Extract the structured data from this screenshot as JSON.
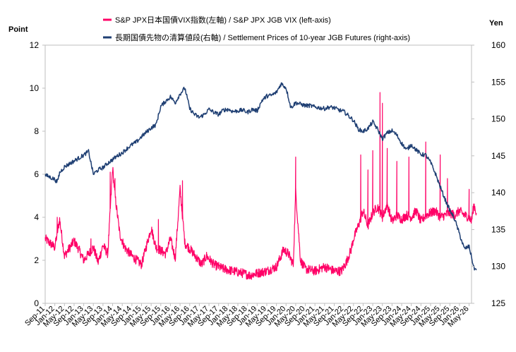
{
  "chart_data": {
    "type": "line",
    "title": "",
    "y_left": {
      "title": "Point",
      "min": 0,
      "max": 12,
      "ticks": [
        0,
        2,
        4,
        6,
        8,
        10,
        12
      ]
    },
    "y_right": {
      "title": "Yen",
      "min": 125,
      "max": 160,
      "ticks": [
        125,
        130,
        135,
        140,
        145,
        150,
        155,
        160
      ]
    },
    "x_axis": {
      "start_month_index": 8,
      "start_year": 2011,
      "end_month_index": 5,
      "end_year": 2026,
      "labels": [
        "Sep-11",
        "Jan-12",
        "May-12",
        "Sep-12",
        "Jan-13",
        "May-13",
        "Sep-13",
        "Jan-14",
        "May-14",
        "Sep-14",
        "Jan-15",
        "May-15",
        "Sep-15",
        "Jan-16",
        "May-16",
        "Sep-16",
        "Jan-17",
        "May-17",
        "Sep-17",
        "Jan-18",
        "May-18",
        "Sep-18",
        "Jan-19",
        "May-19",
        "Sep-19",
        "Jan-20",
        "May-20",
        "Sep-20",
        "Jan-21",
        "May-21",
        "Sep-21",
        "Jan-22",
        "May-22",
        "Sep-22",
        "Jan-23",
        "May-23",
        "Sep-23",
        "Jan-24",
        "May-24",
        "Sep-24",
        "Jan-25",
        "May-25",
        "Sep-25",
        "Jan-26",
        "May-26"
      ]
    },
    "legend_position": "top-center",
    "grid": false,
    "series": [
      {
        "name": "S&P JPX日本国債VIX指数(左軸) / S&P JPX JGB VIX (left-axis)",
        "axis": "left",
        "color": "#ff0066",
        "points": [
          [
            0,
            3.0
          ],
          [
            4,
            2.6
          ],
          [
            6,
            3.9
          ],
          [
            8,
            2.2
          ],
          [
            12,
            2.9
          ],
          [
            14,
            2.5
          ],
          [
            16,
            2.0
          ],
          [
            20,
            2.6
          ],
          [
            22,
            1.9
          ],
          [
            24,
            2.7
          ],
          [
            26,
            2.3
          ],
          [
            28,
            6.3
          ],
          [
            29,
            5.0
          ],
          [
            31,
            3.2
          ],
          [
            33,
            2.6
          ],
          [
            36,
            2.2
          ],
          [
            40,
            1.8
          ],
          [
            44,
            3.5
          ],
          [
            46,
            2.6
          ],
          [
            50,
            2.3
          ],
          [
            52,
            3.0
          ],
          [
            54,
            2.1
          ],
          [
            56,
            5.3
          ],
          [
            58,
            2.8
          ],
          [
            61,
            2.4
          ],
          [
            63,
            2.1
          ],
          [
            65,
            1.8
          ],
          [
            67,
            2.2
          ],
          [
            70,
            1.8
          ],
          [
            74,
            1.6
          ],
          [
            78,
            1.5
          ],
          [
            82,
            1.4
          ],
          [
            85,
            1.3
          ],
          [
            88,
            1.4
          ],
          [
            92,
            1.5
          ],
          [
            96,
            1.7
          ],
          [
            99,
            2.5
          ],
          [
            101,
            2.3
          ],
          [
            103,
            1.8
          ],
          [
            104,
            5.2
          ],
          [
            106,
            2.0
          ],
          [
            108,
            1.6
          ],
          [
            112,
            1.5
          ],
          [
            116,
            1.7
          ],
          [
            120,
            1.5
          ],
          [
            123,
            1.5
          ],
          [
            125,
            1.9
          ],
          [
            127,
            2.5
          ],
          [
            128,
            3.0
          ],
          [
            130,
            3.6
          ],
          [
            132,
            4.3
          ],
          [
            134,
            3.6
          ],
          [
            136,
            4.2
          ],
          [
            138,
            4.5
          ],
          [
            140,
            4.0
          ],
          [
            142,
            4.6
          ],
          [
            144,
            3.8
          ],
          [
            146,
            4.1
          ],
          [
            148,
            3.9
          ],
          [
            150,
            4.1
          ],
          [
            152,
            4.0
          ],
          [
            154,
            4.3
          ],
          [
            156,
            3.8
          ],
          [
            158,
            4.1
          ],
          [
            160,
            4.2
          ],
          [
            162,
            4.3
          ],
          [
            164,
            4.0
          ],
          [
            166,
            4.1
          ],
          [
            168,
            4.2
          ],
          [
            170,
            4.1
          ],
          [
            172,
            4.3
          ],
          [
            174,
            4.1
          ],
          [
            176,
            4.0
          ],
          [
            177,
            3.8
          ],
          [
            178,
            4.6
          ],
          [
            179,
            4.2
          ]
        ],
        "spikes": [
          [
            5,
            4.0
          ],
          [
            19,
            3.0
          ],
          [
            27,
            6.1
          ],
          [
            29,
            5.8
          ],
          [
            47,
            3.9
          ],
          [
            57,
            5.7
          ],
          [
            104,
            6.8
          ],
          [
            131,
            6.9
          ],
          [
            134,
            6.2
          ],
          [
            136,
            7.1
          ],
          [
            139,
            9.8
          ],
          [
            140,
            9.3
          ],
          [
            142,
            7.2
          ],
          [
            146,
            6.6
          ],
          [
            151,
            6.8
          ],
          [
            158,
            7.5
          ],
          [
            164,
            6.9
          ],
          [
            167,
            5.8
          ],
          [
            176,
            5.3
          ]
        ]
      },
      {
        "name": "長期国債先物の清算値段(右軸) / Settlement Prices of 10-year JGB Futures (right-axis)",
        "axis": "right",
        "color": "#1f3f73",
        "points": [
          [
            0,
            142.4
          ],
          [
            2,
            142.1
          ],
          [
            4,
            141.8
          ],
          [
            5,
            141.4
          ],
          [
            6,
            142.7
          ],
          [
            8,
            143.5
          ],
          [
            10,
            143.9
          ],
          [
            12,
            144.3
          ],
          [
            14,
            144.7
          ],
          [
            16,
            145.1
          ],
          [
            18,
            145.6
          ],
          [
            20,
            142.5
          ],
          [
            22,
            143.1
          ],
          [
            24,
            143.4
          ],
          [
            26,
            144.0
          ],
          [
            28,
            144.5
          ],
          [
            30,
            145.0
          ],
          [
            32,
            145.4
          ],
          [
            34,
            146.0
          ],
          [
            36,
            146.5
          ],
          [
            38,
            146.9
          ],
          [
            40,
            147.6
          ],
          [
            42,
            148.2
          ],
          [
            44,
            148.8
          ],
          [
            46,
            149.2
          ],
          [
            48,
            151.7
          ],
          [
            50,
            152.4
          ],
          [
            52,
            153.0
          ],
          [
            54,
            152.2
          ],
          [
            56,
            153.4
          ],
          [
            58,
            154.2
          ],
          [
            60,
            151.4
          ],
          [
            62,
            150.6
          ],
          [
            64,
            150.2
          ],
          [
            66,
            150.6
          ],
          [
            68,
            151.3
          ],
          [
            70,
            150.9
          ],
          [
            72,
            150.6
          ],
          [
            74,
            151.2
          ],
          [
            76,
            151.3
          ],
          [
            78,
            151.0
          ],
          [
            80,
            151.1
          ],
          [
            82,
            151.2
          ],
          [
            84,
            150.9
          ],
          [
            86,
            151.3
          ],
          [
            88,
            151.1
          ],
          [
            90,
            152.5
          ],
          [
            92,
            153.1
          ],
          [
            94,
            153.2
          ],
          [
            96,
            153.6
          ],
          [
            98,
            154.8
          ],
          [
            100,
            154.2
          ],
          [
            101,
            152.9
          ],
          [
            102,
            151.5
          ],
          [
            104,
            152.2
          ],
          [
            106,
            152.0
          ],
          [
            108,
            151.8
          ],
          [
            110,
            151.8
          ],
          [
            112,
            151.6
          ],
          [
            114,
            151.5
          ],
          [
            116,
            151.4
          ],
          [
            118,
            151.6
          ],
          [
            120,
            151.5
          ],
          [
            122,
            151.2
          ],
          [
            124,
            151.0
          ],
          [
            126,
            150.4
          ],
          [
            128,
            149.8
          ],
          [
            130,
            148.6
          ],
          [
            132,
            148.3
          ],
          [
            134,
            148.7
          ],
          [
            136,
            149.6
          ],
          [
            138,
            148.6
          ],
          [
            140,
            147.3
          ],
          [
            142,
            148.1
          ],
          [
            144,
            148.4
          ],
          [
            146,
            147.8
          ],
          [
            148,
            146.7
          ],
          [
            150,
            145.8
          ],
          [
            152,
            146.5
          ],
          [
            154,
            145.8
          ],
          [
            156,
            145.2
          ],
          [
            158,
            145.1
          ],
          [
            160,
            144.1
          ],
          [
            162,
            142.6
          ],
          [
            164,
            140.8
          ],
          [
            166,
            139.1
          ],
          [
            168,
            137.6
          ],
          [
            170,
            136.4
          ],
          [
            172,
            134.4
          ],
          [
            174,
            132.4
          ],
          [
            176,
            132.7
          ],
          [
            178,
            129.8
          ],
          [
            179,
            129.5
          ]
        ]
      }
    ]
  }
}
